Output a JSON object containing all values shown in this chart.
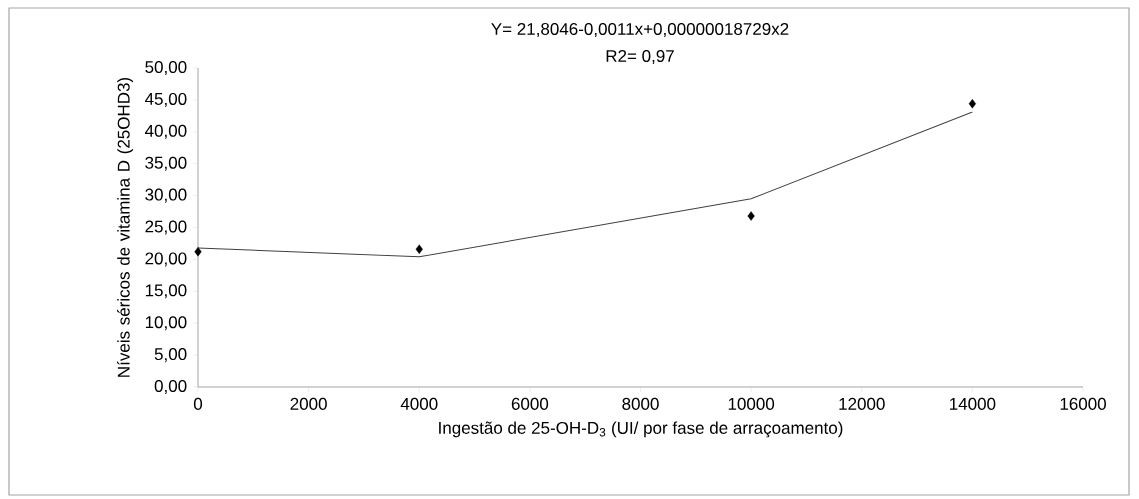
{
  "chart_data": {
    "type": "scatter",
    "xlabel": "Ingestão de 25-OH-D$_{3}$ (UI/ por fase de arraçoamento)",
    "ylabel": "Níveis séricos de vitamina D (25OHD3)",
    "annotations": [
      "Y= 21,8046-0,0011x+0,00000018729x2",
      "R2= 0,97"
    ],
    "series": [
      {
        "color": "#000000",
        "marker": "diamond",
        "x": [
          0,
          4000,
          10000,
          14000
        ],
        "values": [
          21.2,
          21.6,
          26.8,
          44.4
        ]
      },
      {
        "type": "line",
        "color": "#404040",
        "marker": "none",
        "line_style": "solid",
        "x": [
          0,
          4000,
          10000,
          14000
        ],
        "values": [
          21.8,
          20.4,
          29.5,
          43.1
        ]
      }
    ],
    "xlim": [
      0,
      16000
    ],
    "ylim": [
      0,
      50
    ],
    "xticks": [
      0,
      2000,
      4000,
      6000,
      8000,
      10000,
      12000,
      14000,
      16000
    ],
    "yticks": [
      {
        "value": 0,
        "label": "0,00"
      },
      {
        "value": 5,
        "label": "5,00"
      },
      {
        "value": 10,
        "label": "10,00"
      },
      {
        "value": 15,
        "label": "15,00"
      },
      {
        "value": 20,
        "label": "20,00"
      },
      {
        "value": 25,
        "label": "25,00"
      },
      {
        "value": 30,
        "label": "30,00"
      },
      {
        "value": 35,
        "label": "35,00"
      },
      {
        "value": 40,
        "label": "40,00"
      },
      {
        "value": 45,
        "label": "45,00"
      },
      {
        "value": 50,
        "label": "50,00"
      }
    ],
    "grid": false
  }
}
